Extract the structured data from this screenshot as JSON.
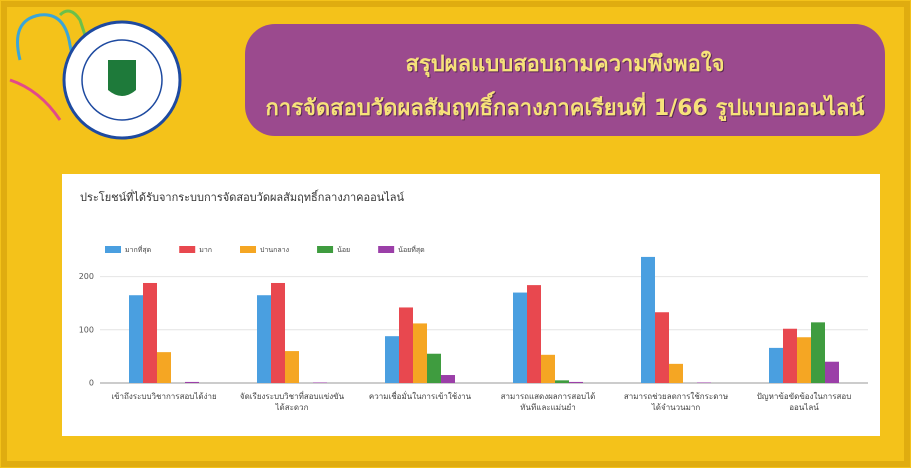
{
  "header": {
    "title_lines": [
      "สรุปผลแบบสอบถามความพึงพอใจ",
      "การจัดสอบวัดผลสัมฤทธิ์กลางภาคเรียนที่ 1/66 รูปแบบออนไลน์"
    ]
  },
  "chart_data": {
    "type": "bar",
    "title": "ประโยชน์ที่ได้รับจากระบบการจัดสอบวัดผลสัมฤทธิ์กลางภาคออนไลน์",
    "categories": [
      "เข้าถึงระบบวิชาการสอบได้ง่าย",
      "จัดเรียงระบบวิชาที่สอบแข่งขันได้สะดวก",
      "ความเชื่อมั่นในการเข้าใช้งาน",
      "สามารถแสดงผลการสอบได้ทันทีและแม่นยำ",
      "สามารถช่วยลดการใช้กระดาษได้จำนวนมาก",
      "ปัญหาข้อขัดข้องในการสอบออนไลน์"
    ],
    "series": [
      {
        "name": "มากที่สุด",
        "color": "#4a9fe0",
        "values": [
          165,
          165,
          88,
          170,
          237,
          66
        ]
      },
      {
        "name": "มาก",
        "color": "#e8484f",
        "values": [
          188,
          188,
          142,
          184,
          133,
          102
        ]
      },
      {
        "name": "ปานกลาง",
        "color": "#f5a623",
        "values": [
          58,
          60,
          112,
          53,
          36,
          86
        ]
      },
      {
        "name": "น้อย",
        "color": "#3f9c3f",
        "values": [
          0,
          0,
          55,
          5,
          0,
          114
        ]
      },
      {
        "name": "น้อยที่สุด",
        "color": "#9b3fa8",
        "values": [
          2,
          1,
          15,
          2,
          1,
          40
        ]
      }
    ],
    "ylim": [
      0,
      250
    ],
    "yticks": [
      0,
      100,
      200
    ],
    "grid": true,
    "legend": "top"
  }
}
